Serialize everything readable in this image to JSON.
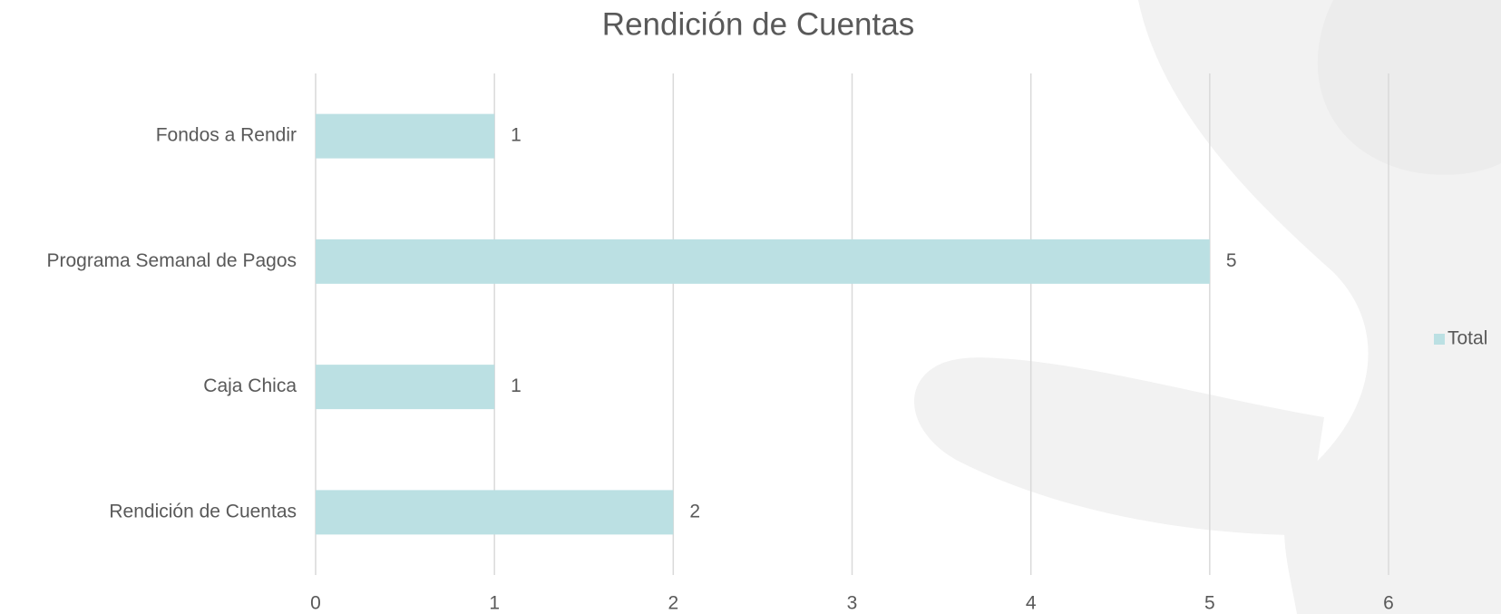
{
  "chart_data": {
    "type": "bar",
    "orientation": "horizontal",
    "title": "Rendición de Cuentas",
    "categories": [
      "Fondos a Rendir",
      "Programa Semanal de Pagos",
      "Caja Chica",
      "Rendición de Cuentas"
    ],
    "series": [
      {
        "name": "Total",
        "color": "#bbe0e3",
        "values": [
          1,
          5,
          1,
          2
        ]
      }
    ],
    "xlim": [
      0,
      6
    ],
    "xticks": [
      0,
      1,
      2,
      3,
      4,
      5,
      6
    ],
    "grid": true,
    "legend": "right"
  }
}
